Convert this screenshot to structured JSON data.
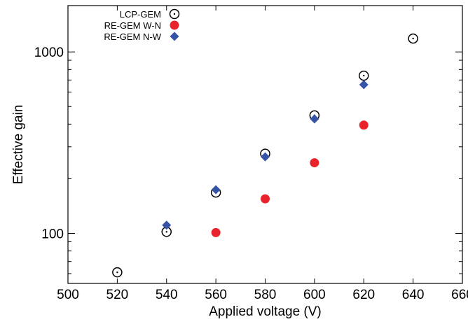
{
  "chart_data": {
    "type": "scatter",
    "xlabel": "Applied voltage (V)",
    "ylabel": "Effective gain",
    "xlim": [
      500,
      660
    ],
    "ylim": [
      53,
      1800
    ],
    "y_scale": "log",
    "x_ticks": [
      500,
      520,
      540,
      560,
      580,
      600,
      620,
      640,
      660
    ],
    "y_ticks": [
      100,
      1000
    ],
    "grid": false,
    "legend_position": "top-left",
    "series": [
      {
        "name": "LCP-GEM",
        "marker": "circle-dot",
        "color": "#000000",
        "x": [
          520,
          540,
          560,
          580,
          600,
          620,
          640
        ],
        "y": [
          61,
          102,
          168,
          275,
          447,
          740,
          1185
        ]
      },
      {
        "name": "RE-GEM W-N",
        "marker": "filled-circle",
        "color": "#e8232b",
        "x": [
          560,
          580,
          600,
          620
        ],
        "y": [
          101,
          155,
          245,
          395
        ]
      },
      {
        "name": "RE-GEM N-W",
        "marker": "diamond",
        "color": "#3554a5",
        "x": [
          540,
          560,
          580,
          600,
          620
        ],
        "y": [
          111,
          174,
          264,
          427,
          660
        ]
      }
    ]
  }
}
